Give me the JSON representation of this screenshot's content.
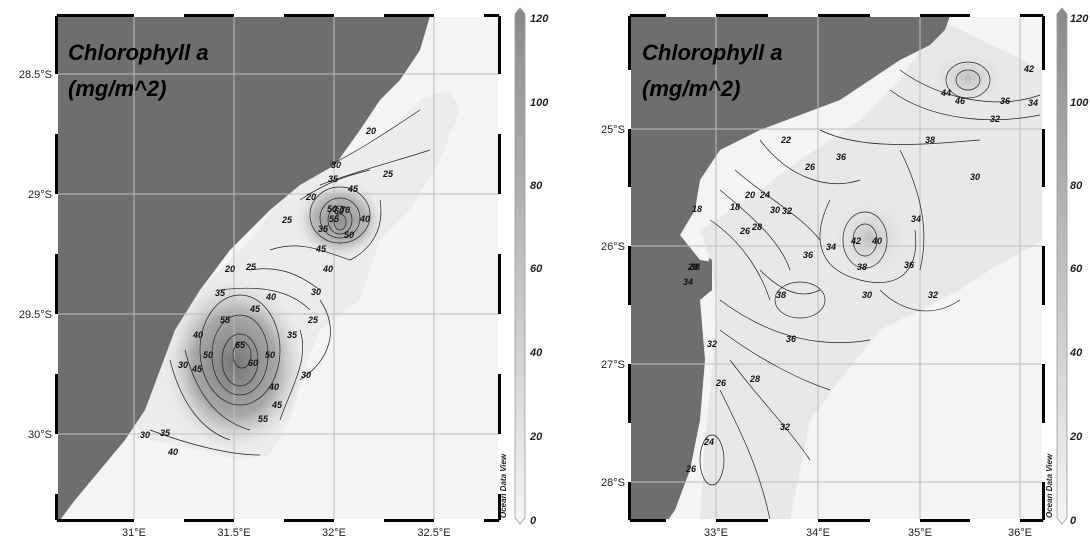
{
  "maps": [
    {
      "id": "left",
      "title_line1": "Chlorophyll a",
      "title_line2": "(mg/m^2)",
      "lat_labels": [
        "28.5°S",
        "29°S",
        "29.5°S",
        "30°S"
      ],
      "lon_labels": [
        "31°E",
        "31.5°E",
        "32°E",
        "32.5°E"
      ],
      "colorbar_labels": [
        "120",
        "100",
        "80",
        "60",
        "40",
        "20",
        "0"
      ],
      "watermark": "Ocean Data View",
      "contour_labels": [
        "20",
        "25",
        "30",
        "35",
        "45",
        "20",
        "25",
        "35",
        "40",
        "50",
        "55",
        "60",
        "70",
        "50",
        "45",
        "40",
        "20",
        "25",
        "35",
        "45",
        "40",
        "30",
        "25",
        "40",
        "55",
        "65",
        "50",
        "60",
        "35",
        "30",
        "30",
        "45",
        "50",
        "40",
        "45",
        "55",
        "40",
        "35",
        "30"
      ]
    },
    {
      "id": "right",
      "title_line1": "Chlorophyll a",
      "title_line2": "(mg/m^2)",
      "lat_labels": [
        "25°S",
        "26°S",
        "27°S",
        "28°S"
      ],
      "lon_labels": [
        "33°E",
        "34°E",
        "35°E",
        "36°E"
      ],
      "colorbar_labels": [
        "120",
        "100",
        "80",
        "60",
        "40",
        "20",
        "0"
      ],
      "watermark": "Ocean Data View",
      "contour_labels": [
        "42",
        "44",
        "46",
        "36",
        "34",
        "32",
        "38",
        "30",
        "22",
        "26",
        "36",
        "20",
        "24",
        "18",
        "18",
        "30",
        "32",
        "26",
        "28",
        "34",
        "42",
        "40",
        "36",
        "38",
        "34",
        "36",
        "38",
        "30",
        "32",
        "28",
        "34",
        "38",
        "36",
        "32",
        "26",
        "28",
        "32",
        "24",
        "26"
      ]
    }
  ],
  "colors": {
    "land": "#6e6e6e",
    "water_light": "#f4f4f4",
    "water_dark": "#8e8e8e",
    "grid": "#bdbdbd",
    "contour": "#222222"
  }
}
